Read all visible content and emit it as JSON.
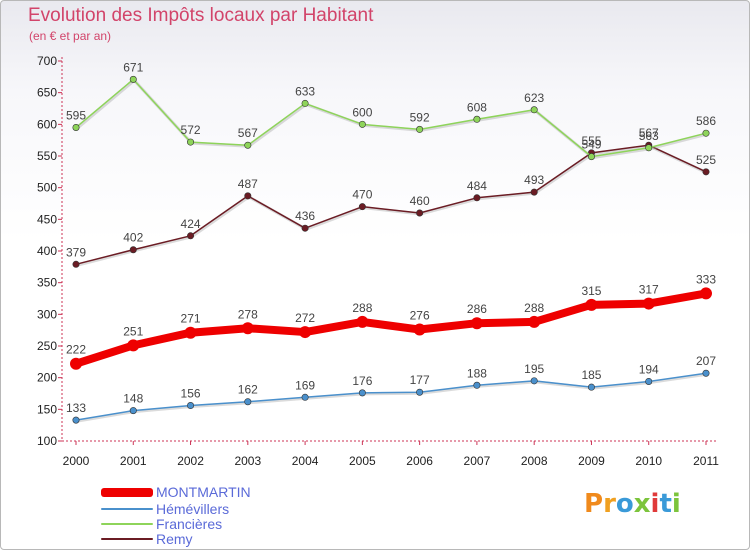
{
  "header": {
    "title": "Evolution des Impôts locaux par Habitant",
    "subtitle": "(en € et par an)"
  },
  "chart_data": {
    "type": "line",
    "title": "Evolution des Impôts locaux par Habitant",
    "subtitle": "(en € et par an)",
    "xlabel": "",
    "ylabel": "",
    "x": [
      "2000",
      "2001",
      "2002",
      "2003",
      "2004",
      "2005",
      "2006",
      "2007",
      "2008",
      "2009",
      "2010",
      "2011"
    ],
    "ylim": [
      100,
      700
    ],
    "yticks": [
      "100",
      "150",
      "200",
      "250",
      "300",
      "350",
      "400",
      "450",
      "500",
      "550",
      "600",
      "650",
      "700"
    ],
    "grid": false,
    "legend_position": "bottom-left",
    "series": [
      {
        "name": "Remy",
        "color": "#6b1c24",
        "values": [
          379,
          402,
          424,
          487,
          436,
          470,
          460,
          484,
          493,
          555,
          567,
          525
        ]
      },
      {
        "name": "Francières",
        "color": "#8ed45a",
        "values": [
          595,
          671,
          572,
          567,
          633,
          600,
          592,
          608,
          623,
          549,
          563,
          586
        ]
      },
      {
        "name": "Hémévillers",
        "color": "#4a90cc",
        "values": [
          133,
          148,
          156,
          162,
          169,
          176,
          177,
          188,
          195,
          185,
          194,
          207
        ]
      },
      {
        "name": "MONTMARTIN",
        "color": "#ee0000",
        "values": [
          222,
          251,
          271,
          278,
          272,
          288,
          276,
          286,
          288,
          315,
          317,
          333
        ]
      }
    ]
  },
  "legend": {
    "items": [
      {
        "label": "MONTMARTIN",
        "color": "#ee0000"
      },
      {
        "label": "Hémévillers",
        "color": "#4a90cc"
      },
      {
        "label": "Francières",
        "color": "#8ed45a"
      },
      {
        "label": "Remy",
        "color": "#6b1c24"
      }
    ]
  },
  "logo": {
    "text": "Proxiti",
    "letter_colors": [
      "#f08a1c",
      "#f0a020",
      "#3a9ad8",
      "#7cc43c",
      "#e03a3a",
      "#3a9ad8",
      "#7cc43c"
    ]
  }
}
